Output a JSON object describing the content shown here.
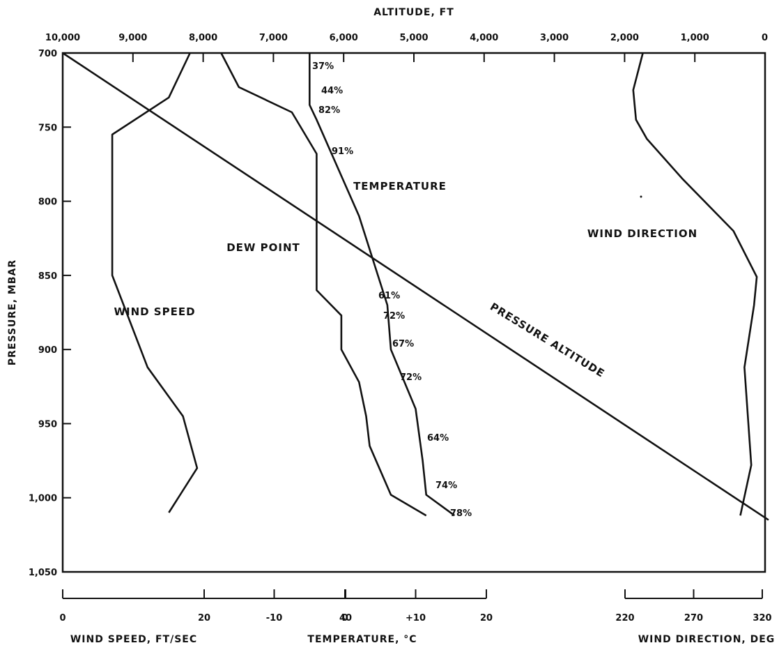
{
  "chart_data": {
    "type": "line",
    "top_axis": {
      "title": "ALTITUDE, FT",
      "ticks": [
        "10,000",
        "9,000",
        "8,000",
        "7,000",
        "6,000",
        "5,000",
        "4,000",
        "3,000",
        "2,000",
        "1,000",
        "0"
      ],
      "range": [
        10000,
        0
      ]
    },
    "left_axis": {
      "title": "PRESSURE, MBAR",
      "ticks": [
        "700",
        "750",
        "800",
        "850",
        "900",
        "950",
        "1,000",
        "1,050"
      ],
      "range": [
        700,
        1050
      ]
    },
    "bottom_axes": [
      {
        "name": "wind-speed",
        "title": "WIND SPEED, FT/SEC",
        "ticks": [
          "0",
          "20",
          "40"
        ],
        "values": [
          0,
          20,
          40
        ]
      },
      {
        "name": "temperature",
        "title": "TEMPERATURE, °C",
        "ticks": [
          "-10",
          "0",
          "+10",
          "20"
        ],
        "values": [
          -10,
          0,
          10,
          20
        ]
      },
      {
        "name": "wind-direction",
        "title": "WIND DIRECTION, DEG",
        "ticks": [
          "220",
          "270",
          "320"
        ],
        "values": [
          220,
          270,
          320
        ]
      }
    ],
    "series": [
      {
        "name": "WIND SPEED",
        "units": "ft/sec",
        "points": [
          [
            18,
            700
          ],
          [
            15,
            730
          ],
          [
            7,
            755
          ],
          [
            7,
            850
          ],
          [
            12,
            912
          ],
          [
            17,
            945
          ],
          [
            19,
            980
          ],
          [
            15,
            1010
          ]
        ]
      },
      {
        "name": "DEW POINT",
        "units": "°C",
        "points": [
          [
            -17.5,
            700
          ],
          [
            -15,
            723
          ],
          [
            -7.5,
            740
          ],
          [
            -4,
            768
          ],
          [
            -4,
            860
          ],
          [
            -0.5,
            877
          ],
          [
            -0.5,
            900
          ],
          [
            2,
            922
          ],
          [
            3,
            945
          ],
          [
            3.5,
            965
          ],
          [
            6.5,
            998
          ],
          [
            11.5,
            1012
          ]
        ]
      },
      {
        "name": "TEMPERATURE",
        "units": "°C",
        "points": [
          [
            -5,
            700
          ],
          [
            -5,
            735
          ],
          [
            -4,
            745
          ],
          [
            2,
            810
          ],
          [
            6,
            870
          ],
          [
            6.5,
            900
          ],
          [
            10,
            940
          ],
          [
            11,
            975
          ],
          [
            11.5,
            998
          ],
          [
            15.5,
            1012
          ]
        ]
      },
      {
        "name": "PRESSURE ALTITUDE",
        "units": "ft",
        "points": [
          [
            10000,
            700
          ],
          [
            -50,
            1015
          ]
        ]
      },
      {
        "name": "WIND DIRECTION",
        "units": "deg",
        "points": [
          [
            233,
            700
          ],
          [
            226,
            725
          ],
          [
            228,
            745
          ],
          [
            236,
            758
          ],
          [
            262,
            785
          ],
          [
            299,
            820
          ],
          [
            316,
            851
          ],
          [
            314,
            870
          ],
          [
            307,
            912
          ],
          [
            312,
            978
          ],
          [
            304,
            1012
          ]
        ]
      }
    ],
    "curve_labels": [
      "WIND SPEED",
      "DEW POINT",
      "TEMPERATURE",
      "WIND DIRECTION",
      "PRESSURE ALTITUDE"
    ],
    "humidity_annotations": [
      {
        "text": "37%",
        "pressure": 700
      },
      {
        "text": "44%",
        "pressure": 725
      },
      {
        "text": "82%",
        "pressure": 737
      },
      {
        "text": "91%",
        "pressure": 765
      },
      {
        "text": "61%",
        "pressure": 865
      },
      {
        "text": "72%",
        "pressure": 882
      },
      {
        "text": "67%",
        "pressure": 897
      },
      {
        "text": "72%",
        "pressure": 918
      },
      {
        "text": "64%",
        "pressure": 960
      },
      {
        "text": "74%",
        "pressure": 990
      },
      {
        "text": "78%",
        "pressure": 1010
      }
    ],
    "grid": false
  }
}
